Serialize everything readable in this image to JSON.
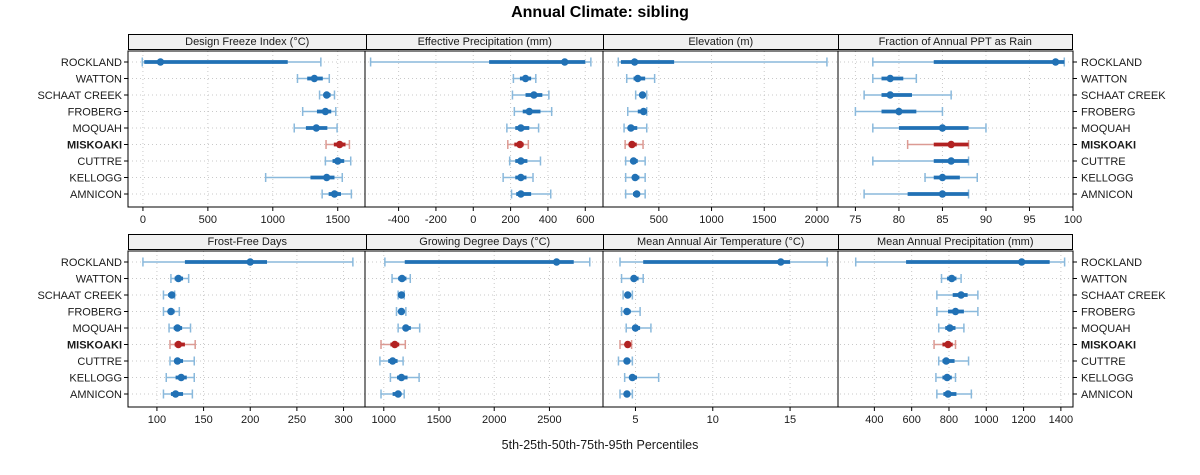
{
  "title": "Annual Climate: sibling",
  "caption": "5th-25th-50th-75th-95th Percentiles",
  "sites": [
    "ROCKLAND",
    "WATTON",
    "SCHAAT CREEK",
    "FROBERG",
    "MOQUAH",
    "MISKOAKI",
    "CUTTRE",
    "KELLOGG",
    "AMNICON"
  ],
  "highlight_site": "MISKOAKI",
  "colors": {
    "normal": "#2171b5",
    "normal_light": "#8ab9dc",
    "highlight": "#b22222",
    "highlight_light": "#dc9a93",
    "grid": "#c9c9c9",
    "header_bg": "#f0f0f0",
    "border": "#000000",
    "text": "#1a1a1a"
  },
  "chart_data": {
    "type": "errorbar-dotplot",
    "percentiles": [
      5,
      25,
      50,
      75,
      95
    ],
    "note": "series arrays are [p5,p25,p50,p75,p95] per site, in site order",
    "panels": [
      {
        "title": "Design Freeze Index (°C)",
        "row": 0,
        "col": 0,
        "xlim": [
          -115,
          1710
        ],
        "ticks": [
          0,
          500,
          1000,
          1500
        ],
        "series": [
          [
            -5,
            10,
            135,
            1115,
            1370
          ],
          [
            1190,
            1265,
            1320,
            1385,
            1435
          ],
          [
            1360,
            1390,
            1415,
            1445,
            1475
          ],
          [
            1230,
            1340,
            1405,
            1450,
            1485
          ],
          [
            1165,
            1255,
            1335,
            1420,
            1495
          ],
          [
            1410,
            1470,
            1515,
            1560,
            1590
          ],
          [
            1405,
            1460,
            1500,
            1550,
            1600
          ],
          [
            945,
            1290,
            1415,
            1475,
            1535
          ],
          [
            1380,
            1430,
            1475,
            1525,
            1605
          ]
        ]
      },
      {
        "title": "Effective Precipitation (mm)",
        "row": 0,
        "col": 1,
        "xlim": [
          -580,
          695
        ],
        "ticks": [
          -400,
          -200,
          0,
          200,
          400,
          600
        ],
        "series": [
          [
            -550,
            85,
            490,
            600,
            630
          ],
          [
            215,
            250,
            280,
            310,
            335
          ],
          [
            210,
            280,
            325,
            370,
            405
          ],
          [
            220,
            265,
            300,
            360,
            420
          ],
          [
            180,
            225,
            255,
            300,
            350
          ],
          [
            185,
            220,
            250,
            270,
            295
          ],
          [
            195,
            225,
            255,
            290,
            360
          ],
          [
            160,
            225,
            255,
            285,
            320
          ],
          [
            205,
            230,
            255,
            310,
            415
          ]
        ]
      },
      {
        "title": "Elevation (m)",
        "row": 0,
        "col": 2,
        "xlim": [
          -30,
          2200
        ],
        "ticks": [
          500,
          1000,
          1500,
          2000
        ],
        "series": [
          [
            115,
            140,
            270,
            645,
            2095
          ],
          [
            195,
            260,
            300,
            370,
            460
          ],
          [
            280,
            320,
            345,
            365,
            385
          ],
          [
            205,
            300,
            355,
            375,
            385
          ],
          [
            170,
            210,
            235,
            295,
            385
          ],
          [
            180,
            215,
            245,
            290,
            350
          ],
          [
            185,
            230,
            260,
            300,
            370
          ],
          [
            185,
            245,
            275,
            315,
            370
          ],
          [
            185,
            255,
            290,
            320,
            370
          ]
        ]
      },
      {
        "title": "Fraction of Annual PPT as Rain",
        "row": 0,
        "col": 3,
        "xlim": [
          73,
          100
        ],
        "ticks": [
          75,
          80,
          85,
          90,
          95,
          100
        ],
        "series": [
          [
            77,
            84,
            98,
            99,
            99
          ],
          [
            77,
            78,
            79,
            80.5,
            82
          ],
          [
            76,
            78,
            79,
            81.5,
            86
          ],
          [
            75,
            78,
            80,
            82,
            85
          ],
          [
            77,
            80,
            85,
            88,
            90
          ],
          [
            81,
            84,
            86,
            88,
            88
          ],
          [
            77,
            84,
            86,
            88,
            88
          ],
          [
            83,
            84,
            85,
            87,
            89
          ],
          [
            76,
            81,
            85,
            88,
            88
          ]
        ]
      },
      {
        "title": "Frost-Free Days",
        "row": 1,
        "col": 0,
        "xlim": [
          69,
          323
        ],
        "ticks": [
          100,
          150,
          200,
          250,
          300
        ],
        "series": [
          [
            85,
            130,
            200,
            218,
            310
          ],
          [
            115,
            119,
            123,
            128,
            134
          ],
          [
            107,
            112,
            116,
            118,
            119
          ],
          [
            107,
            112,
            115,
            119,
            124
          ],
          [
            113,
            118,
            122,
            127,
            136
          ],
          [
            114,
            119,
            123,
            130,
            141
          ],
          [
            114,
            119,
            122,
            128,
            140
          ],
          [
            110,
            120,
            126,
            132,
            140
          ],
          [
            107,
            115,
            120,
            128,
            138
          ]
        ]
      },
      {
        "title": "Growing Degree Days (°C)",
        "row": 1,
        "col": 1,
        "xlim": [
          830,
          2985
        ],
        "ticks": [
          1000,
          1500,
          2000,
          2500
        ],
        "series": [
          [
            1010,
            1190,
            2565,
            2720,
            2865
          ],
          [
            1075,
            1130,
            1165,
            1205,
            1240
          ],
          [
            1130,
            1148,
            1160,
            1175,
            1185
          ],
          [
            1115,
            1140,
            1160,
            1180,
            1200
          ],
          [
            1130,
            1170,
            1200,
            1245,
            1325
          ],
          [
            975,
            1060,
            1100,
            1140,
            1195
          ],
          [
            965,
            1040,
            1080,
            1125,
            1175
          ],
          [
            1060,
            1120,
            1160,
            1215,
            1320
          ],
          [
            975,
            1080,
            1130,
            1160,
            1185
          ]
        ]
      },
      {
        "title": "Mean Annual Air Temperature (°C)",
        "row": 1,
        "col": 2,
        "xlim": [
          2.9,
          18.1
        ],
        "ticks": [
          5,
          10,
          15
        ],
        "series": [
          [
            4.0,
            5.5,
            14.4,
            15.0,
            17.4
          ],
          [
            4.1,
            4.7,
            4.9,
            5.2,
            5.5
          ],
          [
            4.2,
            4.4,
            4.5,
            4.7,
            4.8
          ],
          [
            4.1,
            4.3,
            4.45,
            4.7,
            5.3
          ],
          [
            4.4,
            4.8,
            5.0,
            5.3,
            6.0
          ],
          [
            4.0,
            4.35,
            4.5,
            4.65,
            4.75
          ],
          [
            3.9,
            4.3,
            4.45,
            4.6,
            4.8
          ],
          [
            4.3,
            4.6,
            4.8,
            5.1,
            6.5
          ],
          [
            4.0,
            4.3,
            4.45,
            4.6,
            4.8
          ]
        ]
      },
      {
        "title": "Mean Annual Precipitation (mm)",
        "row": 1,
        "col": 3,
        "xlim": [
          205,
          1465
        ],
        "ticks": [
          400,
          600,
          800,
          1000,
          1200,
          1400
        ],
        "series": [
          [
            300,
            570,
            1190,
            1340,
            1420
          ],
          [
            760,
            790,
            815,
            840,
            865
          ],
          [
            735,
            820,
            865,
            900,
            955
          ],
          [
            735,
            795,
            835,
            880,
            955
          ],
          [
            745,
            780,
            805,
            835,
            880
          ],
          [
            720,
            765,
            795,
            820,
            835
          ],
          [
            745,
            765,
            785,
            830,
            905
          ],
          [
            730,
            765,
            790,
            815,
            835
          ],
          [
            735,
            770,
            795,
            840,
            920
          ]
        ]
      }
    ]
  }
}
